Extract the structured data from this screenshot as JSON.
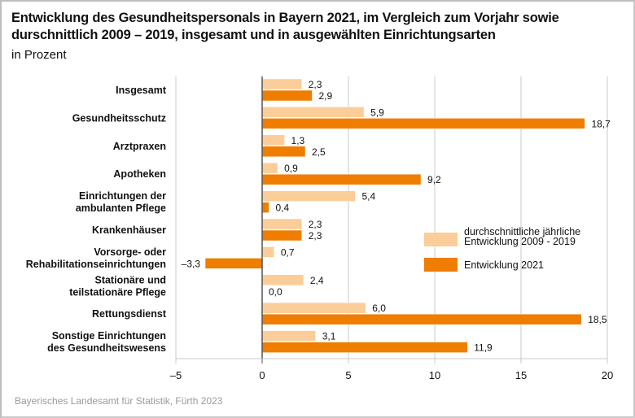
{
  "header": {
    "title_line1": "Entwicklung des Gesundheitspersonals in Bayern 2021, im Vergleich zum Vorjahr sowie",
    "title_line2": "durschnittlich 2009 – 2019, insgesamt und in ausgewählten Einrichtungsarten",
    "subtitle": "in Prozent"
  },
  "source": "Bayerisches Landesamt für Statistik, Fürth 2023",
  "colors": {
    "avg": "#fbcd98",
    "y2021": "#ef7d00",
    "grid": "#c8c8c8",
    "axis": "#555555"
  },
  "chart_data": {
    "type": "bar",
    "orientation": "horizontal",
    "title": "Entwicklung des Gesundheitspersonals in Bayern 2021, im Vergleich zum Vorjahr sowie durschnittlich 2009 – 2019, insgesamt und in ausgewählten Einrichtungsarten",
    "subtitle": "in Prozent",
    "xlabel": "",
    "ylabel": "",
    "xlim": [
      -5,
      20
    ],
    "xticks": [
      -5,
      0,
      5,
      10,
      15,
      20
    ],
    "xtick_labels": [
      "–5",
      "0",
      "5",
      "10",
      "15",
      "20"
    ],
    "grid": "vertical",
    "legend_position": "right-center",
    "categories": [
      [
        "Insgesamt"
      ],
      [
        "Gesundheitsschutz"
      ],
      [
        "Arztpraxen"
      ],
      [
        "Apotheken"
      ],
      [
        "Einrichtungen der",
        "ambulanten Pflege"
      ],
      [
        "Krankenhäuser"
      ],
      [
        "Vorsorge- oder",
        "Rehabilitationseinrichtungen"
      ],
      [
        "Stationäre und",
        "teilstationäre Pflege"
      ],
      [
        "Rettungsdienst"
      ],
      [
        "Sonstige Einrichtungen",
        "des Gesundheitswesens"
      ]
    ],
    "series": [
      {
        "name": "durchschnittliche jährliche Entwicklung 2009 - 2019",
        "legend_lines": [
          "durchschnittliche jährliche",
          "Entwicklung 2009 - 2019"
        ],
        "color": "#fbcd98",
        "values": [
          2.3,
          5.9,
          1.3,
          0.9,
          5.4,
          2.3,
          0.7,
          2.4,
          6.0,
          3.1
        ],
        "labels": [
          "2,3",
          "5,9",
          "1,3",
          "0,9",
          "5,4",
          "2,3",
          "0,7",
          "2,4",
          "6,0",
          "3,1"
        ]
      },
      {
        "name": "Entwicklung 2021",
        "legend_lines": [
          "Entwicklung 2021"
        ],
        "color": "#ef7d00",
        "values": [
          2.9,
          18.7,
          2.5,
          9.2,
          0.4,
          2.3,
          -3.3,
          0.0,
          18.5,
          11.9
        ],
        "labels": [
          "2,9",
          "18,7",
          "2,5",
          "9,2",
          "0,4",
          "2,3",
          "–3,3",
          "0,0",
          "18,5",
          "11,9"
        ]
      }
    ]
  }
}
